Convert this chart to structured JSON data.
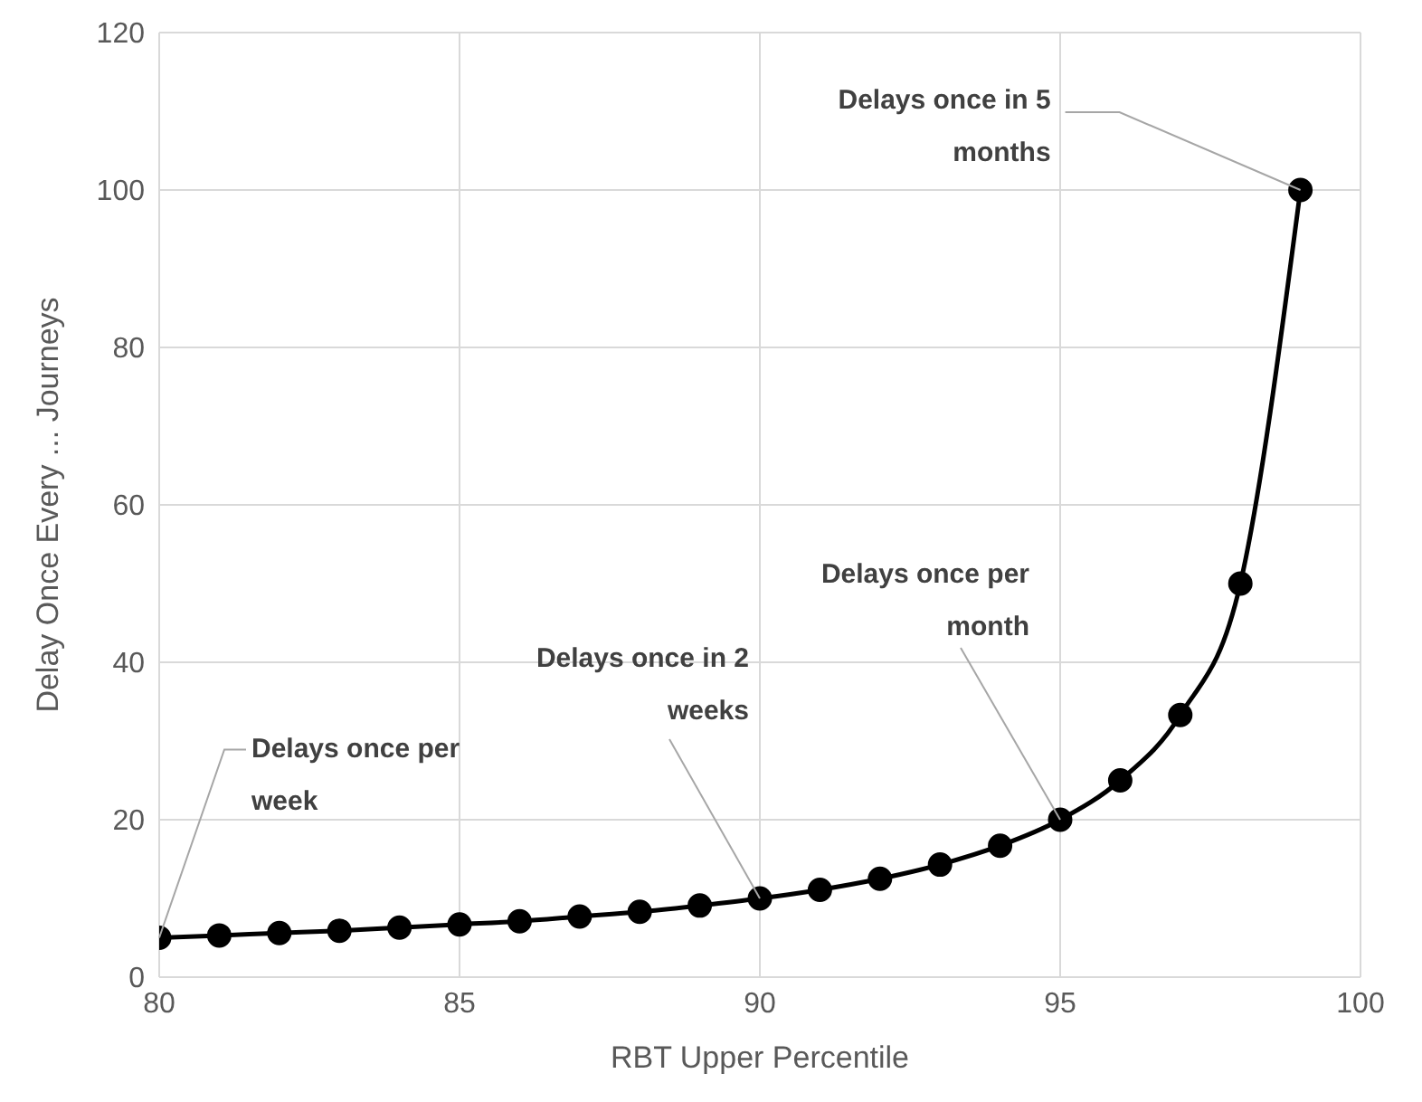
{
  "chart_data": {
    "type": "line",
    "xlabel": "RBT Upper Percentile",
    "ylabel": "Delay Once Every ... Journeys",
    "x": [
      80,
      81,
      82,
      83,
      84,
      85,
      86,
      87,
      88,
      89,
      90,
      91,
      92,
      93,
      94,
      95,
      96,
      97,
      98,
      99
    ],
    "series": [
      {
        "color": "#000000",
        "values": [
          5,
          5.3,
          5.6,
          5.9,
          6.3,
          6.7,
          7.1,
          7.7,
          8.3,
          9.1,
          10,
          11.1,
          12.5,
          14.3,
          16.7,
          20,
          25,
          33.3,
          50,
          100
        ]
      }
    ],
    "xlim": [
      80,
      100
    ],
    "xticks": [
      80,
      85,
      90,
      95,
      100
    ],
    "ylim": [
      0,
      120
    ],
    "yticks": [
      0,
      20,
      40,
      60,
      80,
      100,
      120
    ],
    "grid": true,
    "marker": "circle",
    "line_style": "solid",
    "legend": false,
    "annotations": [
      {
        "text": "Delays once per week",
        "x": 80,
        "y": 5
      },
      {
        "text": "Delays once in 2 weeks",
        "x": 90,
        "y": 10
      },
      {
        "text": "Delays once per month",
        "x": 95,
        "y": 20
      },
      {
        "text": "Delays once in 5 months",
        "x": 99,
        "y": 100
      }
    ]
  }
}
